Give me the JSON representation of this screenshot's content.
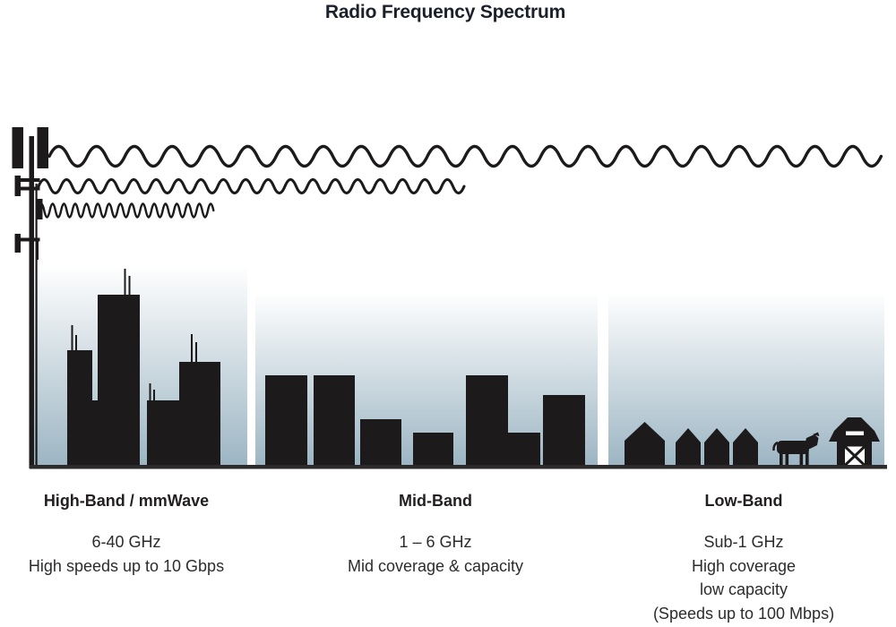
{
  "title": "Radio Frequency Spectrum",
  "colors": {
    "ink": "#1d1a1b",
    "title_text": "#1b202b",
    "heading_text": "#231f20",
    "body_text": "#2e2b2c",
    "sky_top": "#ffffff",
    "sky_bottom": "#9cb5c3",
    "ground": "#2d2a2b"
  },
  "icons": {
    "tower": "cell-tower-icon",
    "waves": [
      "long-wave-icon",
      "medium-wave-icon",
      "short-wave-icon"
    ],
    "high_scene": "skyscraper-city-icon",
    "mid_scene": "midrise-buildings-icon",
    "low_scene": "rural-houses-cow-barn-icon"
  },
  "bands": [
    {
      "heading": "High-Band / mmWave",
      "lines": [
        "6-40 GHz",
        "High speeds up to 10 Gbps"
      ]
    },
    {
      "heading": "Mid-Band",
      "lines": [
        "1 – 6 GHz",
        "Mid coverage & capacity"
      ]
    },
    {
      "heading": "Low-Band",
      "lines": [
        "Sub-1 GHz",
        "High coverage",
        "low capacity",
        "(Speeds up to 100 Mbps)"
      ]
    }
  ]
}
